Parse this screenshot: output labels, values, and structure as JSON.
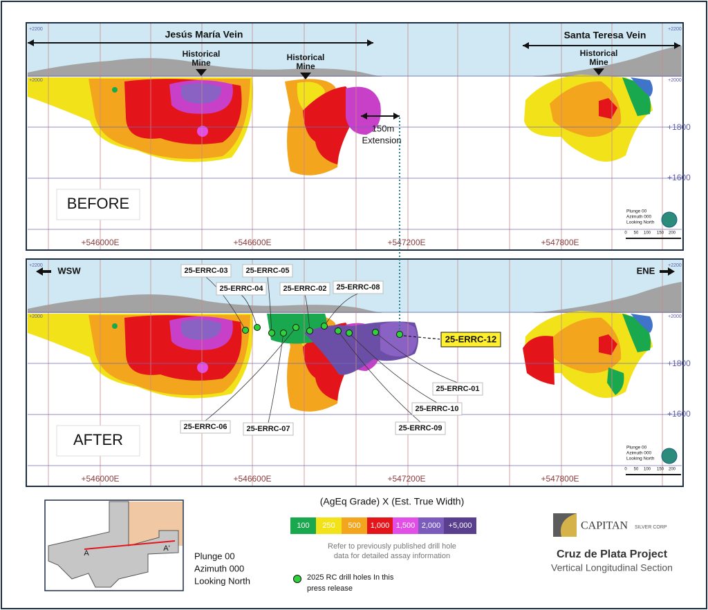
{
  "before_panel": {
    "label": "BEFORE",
    "veins": [
      "Jesús María Vein",
      "Santa Teresa Vein"
    ],
    "historical_mines": [
      [
        "Historical",
        "Mine"
      ],
      [
        "Historical",
        "Mine"
      ],
      [
        "Historical",
        "Mine"
      ]
    ],
    "extension": [
      "150m",
      "Extension"
    ],
    "elevations_left": [
      "+2200",
      "+2000"
    ],
    "elevations_right": [
      "+2200",
      "+2000",
      "+1800",
      "+1600"
    ],
    "eastings": [
      "+546000E",
      "+546600E",
      "+547200E",
      "+547800E"
    ],
    "orientation": [
      "Plunge 00",
      "Azimuth 000",
      "Looking North"
    ],
    "scale": [
      "0",
      "50",
      "100",
      "150",
      "200"
    ]
  },
  "after_panel": {
    "label": "AFTER",
    "directions": [
      "WSW",
      "ENE"
    ],
    "drill_holes": [
      "25-ERRC-03",
      "25-ERRC-05",
      "25-ERRC-04",
      "25-ERRC-02",
      "25-ERRC-08",
      "25-ERRC-01",
      "25-ERRC-10",
      "25-ERRC-09",
      "25-ERRC-06",
      "25-ERRC-07"
    ],
    "highlight_hole": "25-ERRC-12",
    "elevations_left": [
      "+2200",
      "+2000"
    ],
    "elevations_right": [
      "+2200",
      "+2000",
      "+1800",
      "+1600"
    ],
    "eastings": [
      "+546000E",
      "+546600E",
      "+547200E",
      "+547800E"
    ],
    "orientation": [
      "Plunge 00",
      "Azimuth 000",
      "Looking North"
    ],
    "scale": [
      "0",
      "50",
      "100",
      "150",
      "200"
    ]
  },
  "legend": {
    "title": "(AgEq Grade) X (Est. True Width)",
    "items": [
      {
        "label": "100",
        "color": "#1aa84f"
      },
      {
        "label": "250",
        "color": "#f2e21a"
      },
      {
        "label": "500",
        "color": "#f2a51d"
      },
      {
        "label": "1,000",
        "color": "#e3151b"
      },
      {
        "label": "1,500",
        "color": "#e24fe6"
      },
      {
        "label": "2,000",
        "color": "#7b5cbd"
      },
      {
        "label": "+5,000",
        "color": "#5a3f8e"
      }
    ],
    "note": [
      "Refer to previously published drill hole",
      "data for detailed assay information"
    ],
    "drill_note": [
      "2025 RC drill holes In this",
      "press release"
    ]
  },
  "inset": {
    "markers": [
      "A",
      "A'"
    ],
    "orientation": [
      "Plunge 00",
      "Azimuth 000",
      "Looking North"
    ]
  },
  "logo": {
    "brand": "CAPITAN",
    "sub": "SILVER CORP",
    "title": "Cruz de Plata Project",
    "subtitle": "Vertical Longitudinal Section"
  }
}
